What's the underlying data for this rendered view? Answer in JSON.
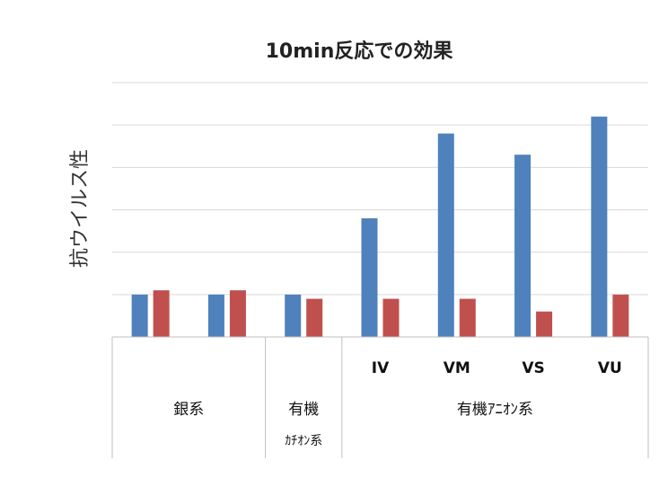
{
  "chart_data": {
    "type": "bar",
    "title": "10min反応での効果",
    "ylabel": "抗ウイルス性",
    "xlabel": "",
    "categories": [
      "",
      "",
      "",
      "IV",
      "VM",
      "VS",
      "VU"
    ],
    "groups": [
      {
        "label": "銀系",
        "sublabel": "",
        "span": [
          0,
          1
        ]
      },
      {
        "label": "有機",
        "sublabel": "ｶﾁｵﾝ系",
        "span": [
          2,
          2
        ]
      },
      {
        "label": "有機ｱﾆｵﾝ系",
        "sublabel": "",
        "span": [
          3,
          6
        ]
      }
    ],
    "series": [
      {
        "values": [
          1.0,
          1.0,
          1.0,
          2.8,
          4.8,
          4.3,
          5.2
        ]
      },
      {
        "values": [
          1.1,
          1.1,
          0.9,
          0.9,
          0.9,
          0.6,
          1.0
        ]
      }
    ],
    "ylim": [
      0,
      6
    ],
    "grid": true,
    "legend": "none",
    "colors": {
      "series0": "#4F81BD",
      "series1": "#C0504D",
      "grid": "#D9D9D9",
      "axis": "#BFBFBF"
    }
  }
}
